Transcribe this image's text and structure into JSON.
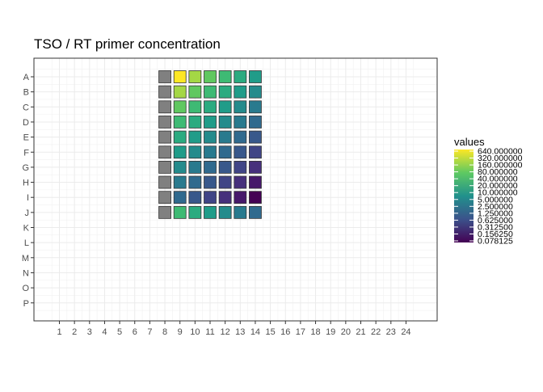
{
  "chart_data": {
    "type": "heatmap",
    "title": "TSO / RT primer concentration",
    "xlabel": "",
    "ylabel": "",
    "x_categories": [
      "1",
      "2",
      "3",
      "4",
      "5",
      "6",
      "7",
      "8",
      "9",
      "10",
      "11",
      "12",
      "13",
      "14",
      "15",
      "16",
      "17",
      "18",
      "19",
      "20",
      "21",
      "22",
      "23",
      "24"
    ],
    "y_categories": [
      "A",
      "B",
      "C",
      "D",
      "E",
      "F",
      "G",
      "H",
      "I",
      "J",
      "K",
      "L",
      "M",
      "N",
      "O",
      "P"
    ],
    "grid": true,
    "legend": {
      "title": "values",
      "placement": "right",
      "scale": "log2",
      "colormap": "viridis",
      "labels": [
        "640.000000",
        "320.000000",
        "160.000000",
        "80.000000",
        "40.000000",
        "20.000000",
        "10.000000",
        "5.000000",
        "2.500000",
        "1.250000",
        "0.625000",
        "0.312500",
        "0.156250",
        "0.078125"
      ],
      "min": 0.078125,
      "max": 640
    },
    "na_color": "#808080",
    "cells": [
      {
        "row": "A",
        "col": "8",
        "value": null
      },
      {
        "row": "A",
        "col": "9",
        "value": 640
      },
      {
        "row": "A",
        "col": "10",
        "value": 320
      },
      {
        "row": "A",
        "col": "11",
        "value": 160
      },
      {
        "row": "A",
        "col": "12",
        "value": 80
      },
      {
        "row": "A",
        "col": "13",
        "value": 40
      },
      {
        "row": "A",
        "col": "14",
        "value": 20
      },
      {
        "row": "B",
        "col": "8",
        "value": null
      },
      {
        "row": "B",
        "col": "9",
        "value": 320
      },
      {
        "row": "B",
        "col": "10",
        "value": 160
      },
      {
        "row": "B",
        "col": "11",
        "value": 80
      },
      {
        "row": "B",
        "col": "12",
        "value": 40
      },
      {
        "row": "B",
        "col": "13",
        "value": 20
      },
      {
        "row": "B",
        "col": "14",
        "value": 10
      },
      {
        "row": "C",
        "col": "8",
        "value": null
      },
      {
        "row": "C",
        "col": "9",
        "value": 160
      },
      {
        "row": "C",
        "col": "10",
        "value": 80
      },
      {
        "row": "C",
        "col": "11",
        "value": 40
      },
      {
        "row": "C",
        "col": "12",
        "value": 20
      },
      {
        "row": "C",
        "col": "13",
        "value": 10
      },
      {
        "row": "C",
        "col": "14",
        "value": 5
      },
      {
        "row": "D",
        "col": "8",
        "value": null
      },
      {
        "row": "D",
        "col": "9",
        "value": 80
      },
      {
        "row": "D",
        "col": "10",
        "value": 40
      },
      {
        "row": "D",
        "col": "11",
        "value": 20
      },
      {
        "row": "D",
        "col": "12",
        "value": 10
      },
      {
        "row": "D",
        "col": "13",
        "value": 5
      },
      {
        "row": "D",
        "col": "14",
        "value": 2.5
      },
      {
        "row": "E",
        "col": "8",
        "value": null
      },
      {
        "row": "E",
        "col": "9",
        "value": 40
      },
      {
        "row": "E",
        "col": "10",
        "value": 20
      },
      {
        "row": "E",
        "col": "11",
        "value": 10
      },
      {
        "row": "E",
        "col": "12",
        "value": 5
      },
      {
        "row": "E",
        "col": "13",
        "value": 2.5
      },
      {
        "row": "E",
        "col": "14",
        "value": 1.25
      },
      {
        "row": "F",
        "col": "8",
        "value": null
      },
      {
        "row": "F",
        "col": "9",
        "value": 20
      },
      {
        "row": "F",
        "col": "10",
        "value": 10
      },
      {
        "row": "F",
        "col": "11",
        "value": 5
      },
      {
        "row": "F",
        "col": "12",
        "value": 2.5
      },
      {
        "row": "F",
        "col": "13",
        "value": 1.25
      },
      {
        "row": "F",
        "col": "14",
        "value": 0.625
      },
      {
        "row": "G",
        "col": "8",
        "value": null
      },
      {
        "row": "G",
        "col": "9",
        "value": 10
      },
      {
        "row": "G",
        "col": "10",
        "value": 5
      },
      {
        "row": "G",
        "col": "11",
        "value": 2.5
      },
      {
        "row": "G",
        "col": "12",
        "value": 1.25
      },
      {
        "row": "G",
        "col": "13",
        "value": 0.625
      },
      {
        "row": "G",
        "col": "14",
        "value": 0.3125
      },
      {
        "row": "H",
        "col": "8",
        "value": null
      },
      {
        "row": "H",
        "col": "9",
        "value": 5
      },
      {
        "row": "H",
        "col": "10",
        "value": 2.5
      },
      {
        "row": "H",
        "col": "11",
        "value": 1.25
      },
      {
        "row": "H",
        "col": "12",
        "value": 0.625
      },
      {
        "row": "H",
        "col": "13",
        "value": 0.3125
      },
      {
        "row": "H",
        "col": "14",
        "value": 0.15625
      },
      {
        "row": "I",
        "col": "8",
        "value": null
      },
      {
        "row": "I",
        "col": "9",
        "value": 2.5
      },
      {
        "row": "I",
        "col": "10",
        "value": 1.25
      },
      {
        "row": "I",
        "col": "11",
        "value": 0.625
      },
      {
        "row": "I",
        "col": "12",
        "value": 0.3125
      },
      {
        "row": "I",
        "col": "13",
        "value": 0.15625
      },
      {
        "row": "I",
        "col": "14",
        "value": 0.078125
      },
      {
        "row": "J",
        "col": "8",
        "value": null
      },
      {
        "row": "J",
        "col": "9",
        "value": 80
      },
      {
        "row": "J",
        "col": "10",
        "value": 40
      },
      {
        "row": "J",
        "col": "11",
        "value": 20
      },
      {
        "row": "J",
        "col": "12",
        "value": 10
      },
      {
        "row": "J",
        "col": "13",
        "value": 5
      },
      {
        "row": "J",
        "col": "14",
        "value": 2.5
      }
    ]
  }
}
